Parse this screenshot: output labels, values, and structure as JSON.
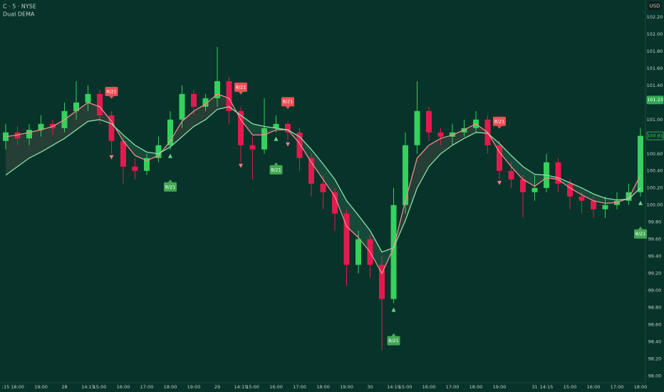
{
  "chart_data": {
    "type": "candlestick",
    "title": "C · 5 · NYSE",
    "subtitle": "Dual DEMA",
    "currency": "USD",
    "up_color": "#35d15c",
    "down_color": "#e6194f",
    "categories": [
      ":15",
      "18:00",
      null,
      "19:00",
      null,
      "28",
      null,
      "14:15",
      "15:00",
      null,
      "16:00",
      null,
      "17:00",
      null,
      "18:00",
      null,
      "19:00",
      null,
      "29",
      null,
      "14:15",
      "15:00",
      null,
      "16:00",
      null,
      "17:00",
      null,
      "18:00",
      null,
      "19:00",
      null,
      "30",
      null,
      "14:15",
      "15:00",
      null,
      "16:00",
      null,
      "17:00",
      null,
      "18:00",
      null,
      "19:00",
      null,
      null,
      "31",
      "14:15",
      null,
      "15:00",
      null,
      "16:00",
      null,
      "17:00",
      null,
      "18:00"
    ],
    "open": [
      100.75,
      100.85,
      100.78,
      100.88,
      100.95,
      100.9,
      101.1,
      101.2,
      101.3,
      101.05,
      100.75,
      100.45,
      100.4,
      100.55,
      100.7,
      101.0,
      101.3,
      101.15,
      101.25,
      101.45,
      101.1,
      100.7,
      100.65,
      100.9,
      100.95,
      100.85,
      100.55,
      100.25,
      100.15,
      99.9,
      99.3,
      99.6,
      99.3,
      98.9,
      100.0,
      100.7,
      101.1,
      100.85,
      100.8,
      100.85,
      100.9,
      101.0,
      100.7,
      100.4,
      100.3,
      100.15,
      100.2,
      100.5,
      100.25,
      100.1,
      100.05,
      99.95,
      100.0,
      100.05,
      100.15
    ],
    "high": [
      100.95,
      100.92,
      100.95,
      101.05,
      101.0,
      101.2,
      101.45,
      101.4,
      101.35,
      101.1,
      100.8,
      100.55,
      100.6,
      100.8,
      101.1,
      101.4,
      101.35,
      101.3,
      101.85,
      101.5,
      101.15,
      100.8,
      101.25,
      101.05,
      100.98,
      100.9,
      100.6,
      100.35,
      100.2,
      99.95,
      99.7,
      99.65,
      99.4,
      100.2,
      100.85,
      101.45,
      101.15,
      100.9,
      100.95,
      101.0,
      101.1,
      101.05,
      100.75,
      100.5,
      100.35,
      100.35,
      100.6,
      100.55,
      100.3,
      100.15,
      100.1,
      100.1,
      100.15,
      100.25,
      100.9
    ],
    "low": [
      100.65,
      100.7,
      100.7,
      100.8,
      100.82,
      100.85,
      101.0,
      101.1,
      100.95,
      100.6,
      100.25,
      100.3,
      100.35,
      100.5,
      100.65,
      100.9,
      101.05,
      101.1,
      101.15,
      100.95,
      100.5,
      100.3,
      100.6,
      100.85,
      100.75,
      100.4,
      100.1,
      99.95,
      99.7,
      99.05,
      99.2,
      99.15,
      98.3,
      98.85,
      99.9,
      100.6,
      100.75,
      100.7,
      100.7,
      100.8,
      100.85,
      100.6,
      100.3,
      100.2,
      99.85,
      100.05,
      100.15,
      100.15,
      99.95,
      99.9,
      99.85,
      99.85,
      99.95,
      100.0,
      100.1
    ],
    "close": [
      100.85,
      100.78,
      100.88,
      100.95,
      100.9,
      101.1,
      101.2,
      101.3,
      101.05,
      100.75,
      100.45,
      100.4,
      100.55,
      100.7,
      101.0,
      101.3,
      101.15,
      101.25,
      101.45,
      101.1,
      100.7,
      100.65,
      100.9,
      100.95,
      100.85,
      100.55,
      100.25,
      100.15,
      99.9,
      99.3,
      99.6,
      99.3,
      98.9,
      100.0,
      100.7,
      101.1,
      100.85,
      100.8,
      100.85,
      100.9,
      101.0,
      100.7,
      100.4,
      100.3,
      100.15,
      100.2,
      100.5,
      100.25,
      100.1,
      100.05,
      99.95,
      100.0,
      100.05,
      100.15,
      100.81
    ],
    "series": [
      {
        "color": "#f08c8c",
        "values": [
          100.8,
          100.82,
          100.85,
          100.88,
          100.92,
          101.0,
          101.1,
          101.2,
          101.15,
          100.98,
          100.75,
          100.58,
          100.52,
          100.58,
          100.75,
          100.98,
          101.1,
          101.18,
          101.3,
          101.25,
          101.0,
          100.82,
          100.82,
          100.88,
          100.88,
          100.72,
          100.5,
          100.3,
          100.1,
          99.75,
          99.62,
          99.45,
          99.2,
          99.5,
          100.05,
          100.55,
          100.7,
          100.78,
          100.82,
          100.88,
          100.95,
          100.85,
          100.62,
          100.45,
          100.3,
          100.22,
          100.32,
          100.3,
          100.2,
          100.12,
          100.05,
          100.02,
          100.03,
          100.08,
          100.35
        ]
      },
      {
        "color": "#86e3a8",
        "values": [
          100.35,
          100.45,
          100.55,
          100.62,
          100.7,
          100.78,
          100.88,
          100.98,
          101.0,
          100.95,
          100.82,
          100.7,
          100.62,
          100.6,
          100.68,
          100.8,
          100.92,
          101.0,
          101.12,
          101.15,
          101.05,
          100.95,
          100.92,
          100.9,
          100.88,
          100.8,
          100.65,
          100.48,
          100.3,
          100.05,
          99.88,
          99.7,
          99.45,
          99.5,
          99.82,
          100.2,
          100.45,
          100.6,
          100.7,
          100.78,
          100.85,
          100.84,
          100.72,
          100.58,
          100.45,
          100.36,
          100.35,
          100.32,
          100.26,
          100.2,
          100.13,
          100.08,
          100.06,
          100.07,
          100.2
        ]
      }
    ],
    "signals": [
      {
        "text": "8/21",
        "kind": "sell",
        "index": 9
      },
      {
        "text": "8/21",
        "kind": "buy",
        "index": 14
      },
      {
        "text": "8/21",
        "kind": "sell",
        "index": 20
      },
      {
        "text": "8/21",
        "kind": "buy",
        "index": 23
      },
      {
        "text": "8/21",
        "kind": "sell",
        "index": 24
      },
      {
        "text": "8/21",
        "kind": "buy",
        "index": 33
      },
      {
        "text": "8/21",
        "kind": "sell",
        "index": 42
      },
      {
        "text": "8/21",
        "kind": "buy",
        "index": 54
      }
    ],
    "price_markers": [
      {
        "value": 101.23,
        "style": "filled"
      },
      {
        "value": 100.81,
        "style": "outline"
      }
    ],
    "ylim": [
      97.92,
      102.4
    ],
    "yticks": [
      {
        "value": 98,
        "label": "98.00"
      },
      {
        "value": 98.2,
        "label": "98.20"
      },
      {
        "value": 98.4,
        "label": "98.40"
      },
      {
        "value": 98.6,
        "label": "98.60"
      },
      {
        "value": 98.8,
        "label": "98.80"
      },
      {
        "value": 99,
        "label": "99.00"
      },
      {
        "value": 99.2,
        "label": "99.20"
      },
      {
        "value": 99.4,
        "label": "99.40"
      },
      {
        "value": 99.6,
        "label": "99.60"
      },
      {
        "value": 99.8,
        "label": "99.80"
      },
      {
        "value": 100,
        "label": "100.00"
      },
      {
        "value": 100.2,
        "label": "100.20"
      },
      {
        "value": 100.4,
        "label": "100.40"
      },
      {
        "value": 100.6,
        "label": "100.60"
      },
      {
        "value": 100.8,
        "label": "100.80"
      },
      {
        "value": 101,
        "label": "101.00"
      },
      {
        "value": 101.2,
        "label": "101.20"
      },
      {
        "value": 101.4,
        "label": "101.40"
      },
      {
        "value": 101.6,
        "label": "101.60"
      },
      {
        "value": 101.8,
        "label": "101.80"
      },
      {
        "value": 102,
        "label": "102.00"
      },
      {
        "value": 102.2,
        "label": "102.20"
      }
    ]
  }
}
